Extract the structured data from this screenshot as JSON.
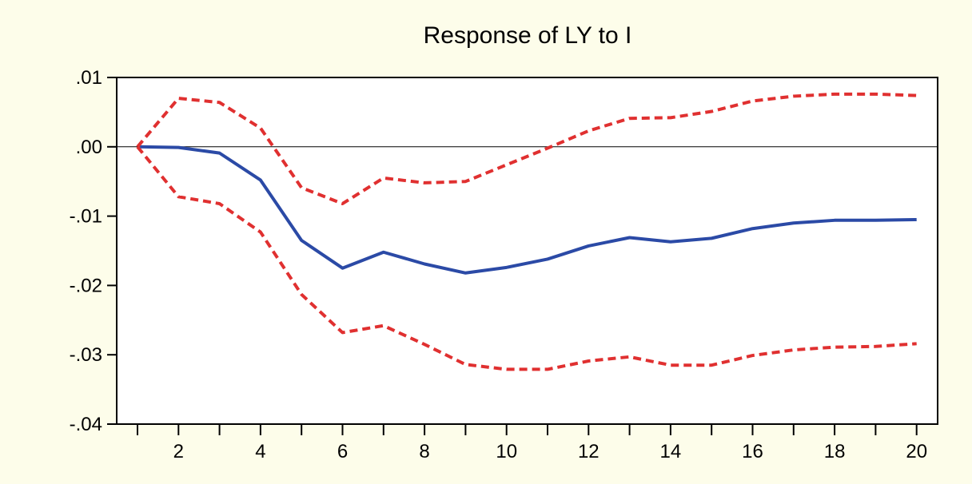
{
  "chart_data": {
    "type": "line",
    "title": "Response of LY to I",
    "xlabel": "",
    "ylabel": "",
    "x": [
      1,
      2,
      3,
      4,
      5,
      6,
      7,
      8,
      9,
      10,
      11,
      12,
      13,
      14,
      15,
      16,
      17,
      18,
      19,
      20
    ],
    "xlim": [
      1,
      20
    ],
    "ylim": [
      -0.04,
      0.01
    ],
    "x_tick_labels": [
      "2",
      "4",
      "6",
      "8",
      "10",
      "12",
      "14",
      "16",
      "18",
      "20"
    ],
    "x_tick_values": [
      2,
      4,
      6,
      8,
      10,
      12,
      14,
      16,
      18,
      20
    ],
    "y_tick_labels": [
      ".01",
      ".00",
      "-.01",
      "-.02",
      "-.03",
      "-.04"
    ],
    "y_tick_values": [
      0.01,
      0.0,
      -0.01,
      -0.02,
      -0.03,
      -0.04
    ],
    "zero_line": true,
    "grid": false,
    "series": [
      {
        "role": "response",
        "style": "solid",
        "color": "#2b4aa6",
        "values": [
          0.0,
          -0.0001,
          -0.0009,
          -0.0048,
          -0.0135,
          -0.0175,
          -0.0152,
          -0.0169,
          -0.0182,
          -0.0174,
          -0.0162,
          -0.0143,
          -0.0131,
          -0.0137,
          -0.0132,
          -0.0118,
          -0.011,
          -0.0106,
          -0.0106,
          -0.0105
        ]
      },
      {
        "role": "upper-band",
        "style": "dashed",
        "color": "#e03030",
        "values": [
          0.0,
          0.007,
          0.0064,
          0.0027,
          -0.0059,
          -0.0082,
          -0.0045,
          -0.0052,
          -0.005,
          -0.0026,
          -0.0002,
          0.0023,
          0.0041,
          0.0042,
          0.0051,
          0.0066,
          0.0073,
          0.0076,
          0.0076,
          0.0074
        ]
      },
      {
        "role": "lower-band",
        "style": "dashed",
        "color": "#e03030",
        "values": [
          0.0,
          -0.0072,
          -0.0082,
          -0.0123,
          -0.0213,
          -0.0268,
          -0.0258,
          -0.0285,
          -0.0314,
          -0.0321,
          -0.0321,
          -0.0309,
          -0.0303,
          -0.0315,
          -0.0315,
          -0.0301,
          -0.0293,
          -0.0289,
          -0.0288,
          -0.0284
        ]
      }
    ]
  }
}
